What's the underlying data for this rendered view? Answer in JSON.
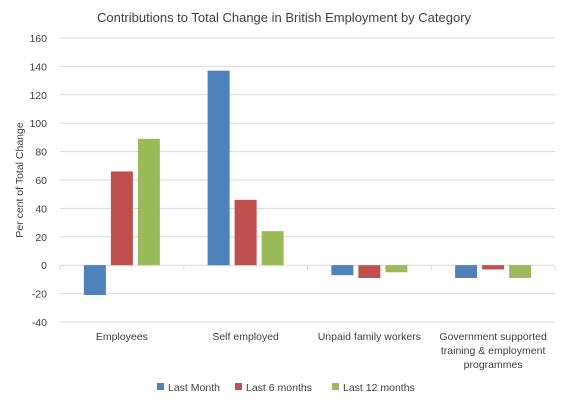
{
  "chart_data": {
    "type": "bar",
    "title": "Contributions  to Total Change  in British  Employment  by Category",
    "xlabel": "",
    "ylabel": "Per cent of Total Change",
    "ylim": [
      -40,
      160
    ],
    "yticks": [
      -40,
      -20,
      0,
      20,
      40,
      60,
      80,
      100,
      120,
      140,
      160
    ],
    "grid": true,
    "legend_position": "bottom",
    "categories": [
      [
        "Employees"
      ],
      [
        "Self employed"
      ],
      [
        "Unpaid family workers"
      ],
      [
        "Government supported",
        "training & employment",
        "programmes"
      ]
    ],
    "series": [
      {
        "name": "Last Month",
        "color": "#4f81bd",
        "values": [
          -21,
          137,
          -7,
          -9
        ]
      },
      {
        "name": "Last 6 months",
        "color": "#c0504d",
        "values": [
          66,
          46,
          -9,
          -3
        ]
      },
      {
        "name": "Last 12 months",
        "color": "#9bbb59",
        "values": [
          89,
          24,
          -5,
          -9
        ]
      }
    ]
  }
}
